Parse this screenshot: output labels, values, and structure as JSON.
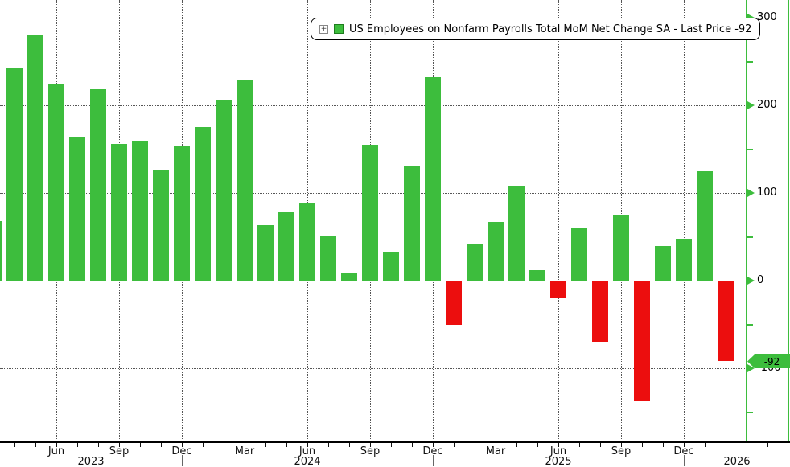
{
  "chart_data": {
    "type": "bar",
    "title": "US Employees on Nonfarm Payrolls Total MoM Net Change SA - Last Price -92",
    "categories": [
      "Mar 2023",
      "Apr 2023",
      "May 2023",
      "Jun 2023",
      "Jul 2023",
      "Aug 2023",
      "Sep 2023",
      "Oct 2023",
      "Nov 2023",
      "Dec 2023",
      "Jan 2024",
      "Feb 2024",
      "Mar 2024",
      "Apr 2024",
      "May 2024",
      "Jun 2024",
      "Jul 2024",
      "Aug 2024",
      "Sep 2024",
      "Oct 2024",
      "Nov 2024",
      "Dec 2024",
      "Jan 2025",
      "Feb 2025",
      "Mar 2025",
      "Apr 2025",
      "May 2025",
      "Jun 2025",
      "Jul 2025",
      "Aug 2025",
      "Sep 2025",
      "Oct 2025",
      "Nov 2025",
      "Dec 2025",
      "Jan 2026",
      "Feb 2026"
    ],
    "values": [
      68,
      242,
      280,
      225,
      163,
      218,
      156,
      160,
      127,
      153,
      175,
      206,
      229,
      63,
      78,
      88,
      51,
      8,
      155,
      32,
      130,
      232,
      -50,
      41,
      67,
      108,
      12,
      -20,
      60,
      -70,
      75,
      -138,
      39,
      48,
      125,
      -92
    ],
    "ylim": [
      -200,
      320
    ],
    "grid": "dotted",
    "legend_position": "top-inside",
    "y_ticks_major": [
      300,
      200,
      100,
      0,
      -100
    ],
    "y_ticks_minor": [
      250,
      150,
      50,
      -50,
      -150
    ],
    "x_quarter_ticks": [
      {
        "i": 3,
        "label": "Jun"
      },
      {
        "i": 6,
        "label": "Sep"
      },
      {
        "i": 9,
        "label": "Dec"
      },
      {
        "i": 12,
        "label": "Mar"
      },
      {
        "i": 15,
        "label": "Jun"
      },
      {
        "i": 18,
        "label": "Sep"
      },
      {
        "i": 21,
        "label": "Dec"
      },
      {
        "i": 24,
        "label": "Mar"
      },
      {
        "i": 27,
        "label": "Jun"
      },
      {
        "i": 30,
        "label": "Sep"
      },
      {
        "i": 33,
        "label": "Dec"
      }
    ],
    "year_labels": [
      "2023",
      "2024",
      "2025",
      "2026"
    ],
    "year_separator_indices": [
      9,
      21,
      33
    ],
    "last_price": {
      "label": "-92",
      "value": -92
    },
    "colors": {
      "positive": "#3DBD3D",
      "negative": "#EC0E0E",
      "axis": "#3DBD3D",
      "grid": "#555555",
      "text": "#000000"
    }
  },
  "legend": {
    "expand_icon_glyph": "+"
  }
}
